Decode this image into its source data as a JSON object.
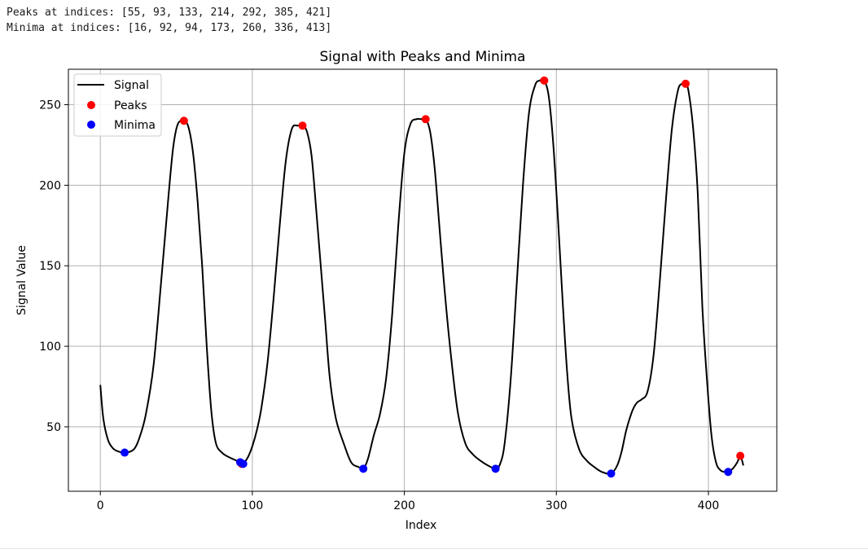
{
  "output": {
    "line1": "Peaks at indices: [55, 93, 133, 214, 292, 385, 421]",
    "line2": "Minima at indices: [16, 92, 94, 173, 260, 336, 413]"
  },
  "chart_data": {
    "type": "line",
    "title": "Signal with Peaks and Minima",
    "xlabel": "Index",
    "ylabel": "Signal Value",
    "xlim": [
      -21,
      445
    ],
    "ylim": [
      10,
      272
    ],
    "xticks": [
      0,
      100,
      200,
      300,
      400
    ],
    "yticks": [
      50,
      100,
      150,
      200,
      250
    ],
    "grid": true,
    "legend": {
      "position": "top-left",
      "entries": [
        "Signal",
        "Peaks",
        "Minima"
      ]
    },
    "colors": {
      "signal": "#000000",
      "peaks": "#ff0000",
      "minima": "#0000ff",
      "grid": "#b0b0b0"
    },
    "series": [
      {
        "name": "Signal",
        "x": [
          0,
          2,
          5,
          8,
          11,
          16,
          22,
          26,
          30,
          35,
          40,
          45,
          48,
          51,
          55,
          58,
          61,
          64,
          67,
          70,
          73,
          76,
          80,
          85,
          92,
          93,
          94,
          97,
          100,
          103,
          106,
          110,
          114,
          118,
          122,
          126,
          130,
          133,
          136,
          139,
          142,
          145,
          148,
          151,
          155,
          160,
          165,
          170,
          173,
          176,
          180,
          184,
          188,
          192,
          196,
          200,
          204,
          208,
          211,
          214,
          217,
          220,
          223,
          226,
          230,
          235,
          240,
          245,
          250,
          255,
          260,
          263,
          266,
          270,
          274,
          278,
          282,
          286,
          289,
          292,
          295,
          298,
          301,
          304,
          307,
          310,
          315,
          320,
          325,
          330,
          336,
          340,
          343,
          346,
          350,
          353,
          356,
          360,
          364,
          368,
          372,
          376,
          380,
          383,
          385,
          387,
          390,
          393,
          396,
          399,
          402,
          405,
          408,
          411,
          413,
          416,
          419,
          421,
          423
        ],
        "y": [
          76,
          55,
          42,
          37,
          35,
          34,
          36,
          44,
          58,
          88,
          140,
          195,
          224,
          238,
          240,
          236,
          220,
          190,
          150,
          100,
          60,
          40,
          34,
          31,
          28,
          27,
          27,
          31,
          38,
          48,
          62,
          90,
          130,
          175,
          215,
          235,
          237,
          237,
          233,
          218,
          185,
          150,
          115,
          80,
          55,
          40,
          28,
          25,
          24,
          30,
          45,
          58,
          80,
          120,
          175,
          220,
          238,
          241,
          241,
          241,
          233,
          210,
          175,
          140,
          100,
          60,
          40,
          33,
          29,
          26,
          24,
          27,
          40,
          80,
          140,
          200,
          245,
          262,
          265,
          265,
          255,
          225,
          180,
          130,
          85,
          55,
          36,
          29,
          25,
          22,
          21,
          26,
          35,
          48,
          60,
          65,
          67,
          72,
          95,
          140,
          190,
          235,
          259,
          263,
          263,
          258,
          235,
          195,
          125,
          80,
          45,
          28,
          23,
          22,
          22,
          24,
          28,
          32,
          26
        ]
      },
      {
        "name": "Peaks",
        "x": [
          55,
          93,
          133,
          214,
          292,
          385,
          421
        ],
        "y": [
          240,
          27,
          237,
          241,
          265,
          263,
          32
        ]
      },
      {
        "name": "Minima",
        "x": [
          16,
          92,
          94,
          173,
          260,
          336,
          413
        ],
        "y": [
          34,
          28,
          27,
          24,
          24,
          21,
          22
        ]
      }
    ]
  }
}
